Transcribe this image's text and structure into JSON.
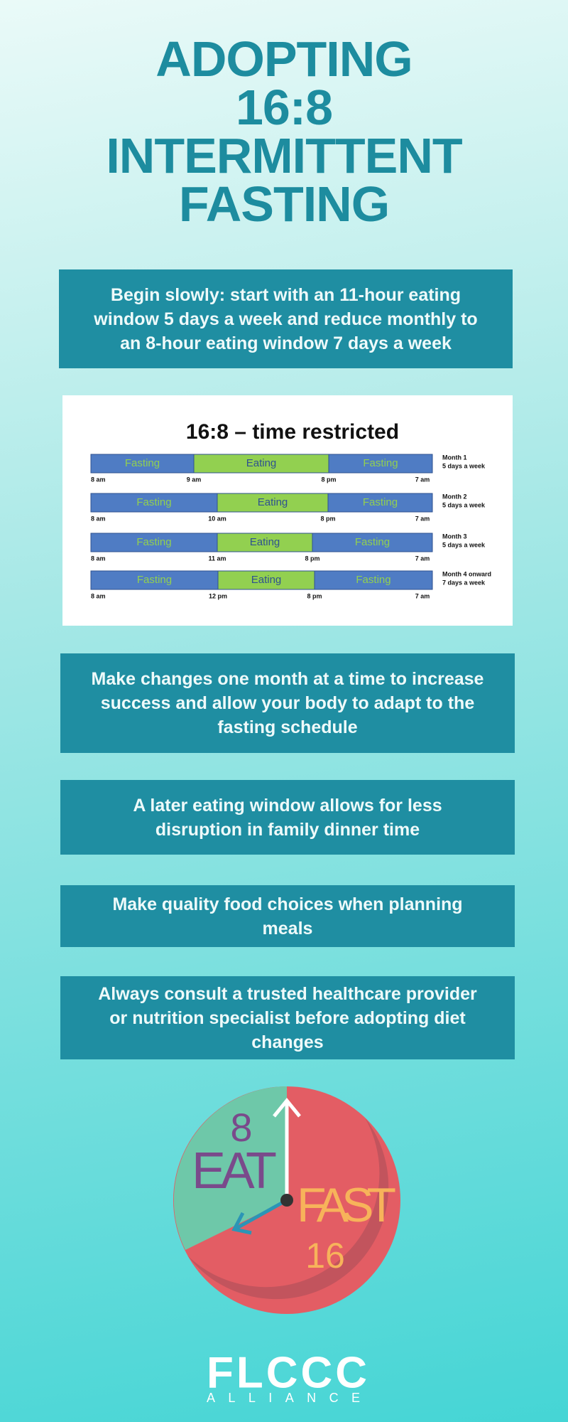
{
  "header": {
    "title_lines": [
      "ADOPTING",
      "16:8",
      "INTERMITTENT",
      "FASTING"
    ]
  },
  "tips": [
    "Begin slowly: start with an 11-hour eating window 5 days a week and reduce monthly to an 8-hour eating window 7 days a week",
    "Make changes one month at a time to increase success and allow your body to adapt to the fasting schedule",
    "A later eating window allows for less disruption in family dinner time",
    "Make quality food choices when planning meals",
    "Always consult a trusted healthcare provider or nutrition specialist before adopting diet changes"
  ],
  "schedule": {
    "title": "16:8 – time restricted",
    "rows": [
      {
        "segments": [
          "Fasting",
          "Eating",
          "Fasting"
        ],
        "times": [
          "8 am",
          "9 am",
          "8 pm",
          "7 am"
        ],
        "month": "Month 1",
        "days": "5 days a week"
      },
      {
        "segments": [
          "Fasting",
          "Eating",
          "Fasting"
        ],
        "times": [
          "8 am",
          "10 am",
          "8 pm",
          "7 am"
        ],
        "month": "Month 2",
        "days": "5 days a week"
      },
      {
        "segments": [
          "Fasting",
          "Eating",
          "Fasting"
        ],
        "times": [
          "8 am",
          "11 am",
          "8 pm",
          "7 am"
        ],
        "month": "Month 3",
        "days": "5 days a week"
      },
      {
        "segments": [
          "Fasting",
          "Eating",
          "Fasting"
        ],
        "times": [
          "8 am",
          "12 pm",
          "8 pm",
          "7 am"
        ],
        "month": "Month 4 onward",
        "days": "7 days a week"
      }
    ]
  },
  "clock": {
    "eat_hours": "8",
    "eat": "EAT",
    "fast": "FAST",
    "fast_hours": "16"
  },
  "logo": {
    "name": "FLCCC",
    "sub": "ALLIANCE"
  }
}
